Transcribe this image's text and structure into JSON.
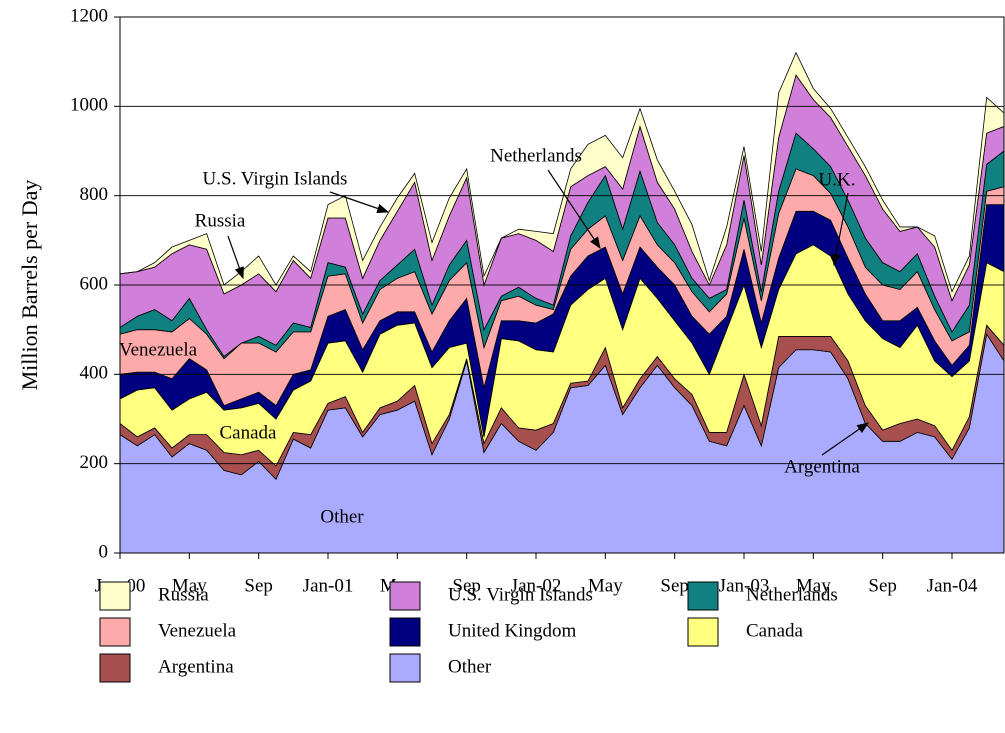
{
  "chart_data": {
    "type": "stacked_area",
    "y_label": "Million Barrels per Day",
    "categories": [
      "Jan-00",
      null,
      null,
      null,
      "May",
      null,
      null,
      null,
      "Sep",
      null,
      null,
      null,
      "Jan-01",
      null,
      null,
      null,
      "May",
      null,
      null,
      null,
      "Sep",
      null,
      null,
      null,
      "Jan-02",
      null,
      null,
      null,
      "May",
      null,
      null,
      null,
      "Sep",
      null,
      null,
      null,
      "Jan-03",
      null,
      null,
      null,
      "May",
      null,
      null,
      null,
      "Sep",
      null,
      null,
      null,
      "Jan-04",
      null,
      null,
      null
    ],
    "ylim": [
      0,
      1200
    ],
    "yticks": [
      0,
      200,
      400,
      600,
      800,
      1000,
      1200
    ],
    "grid": true,
    "series": [
      {
        "name": "Other",
        "color": "#aaaaff",
        "values": [
          265,
          240,
          265,
          215,
          245,
          230,
          185,
          175,
          205,
          165,
          255,
          235,
          320,
          325,
          260,
          310,
          320,
          340,
          220,
          300,
          430,
          225,
          290,
          250,
          230,
          270,
          370,
          375,
          420,
          310,
          370,
          420,
          370,
          330,
          250,
          240,
          330,
          240,
          415,
          455,
          455,
          450,
          390,
          290,
          250,
          250,
          270,
          260,
          210,
          280,
          490,
          430
        ]
      },
      {
        "name": "Argentina",
        "color": "#a85050",
        "values": [
          25,
          20,
          15,
          20,
          20,
          35,
          40,
          45,
          25,
          30,
          15,
          30,
          15,
          25,
          10,
          15,
          20,
          35,
          25,
          10,
          5,
          20,
          35,
          30,
          45,
          20,
          10,
          10,
          40,
          15,
          20,
          20,
          20,
          25,
          20,
          30,
          70,
          45,
          70,
          30,
          30,
          35,
          40,
          40,
          25,
          40,
          30,
          25,
          20,
          25,
          20,
          35
        ]
      },
      {
        "name": "Canada",
        "color": "#ffff80",
        "values": [
          55,
          105,
          90,
          85,
          80,
          95,
          95,
          105,
          105,
          105,
          95,
          120,
          135,
          125,
          135,
          165,
          170,
          140,
          170,
          150,
          35,
          15,
          155,
          195,
          180,
          160,
          175,
          205,
          155,
          175,
          225,
          130,
          130,
          115,
          130,
          230,
          200,
          175,
          105,
          185,
          205,
          180,
          150,
          190,
          205,
          170,
          210,
          145,
          165,
          125,
          140,
          165
        ]
      },
      {
        "name": "United Kingdom",
        "color": "#000080",
        "values": [
          55,
          40,
          35,
          70,
          90,
          50,
          10,
          20,
          25,
          30,
          35,
          25,
          60,
          70,
          50,
          30,
          30,
          25,
          35,
          60,
          100,
          110,
          40,
          45,
          60,
          85,
          65,
          75,
          70,
          80,
          70,
          70,
          80,
          60,
          90,
          30,
          80,
          55,
          70,
          95,
          75,
          80,
          80,
          60,
          40,
          60,
          40,
          45,
          25,
          35,
          130,
          150
        ]
      },
      {
        "name": "Venezuela",
        "color": "#ffaaaa",
        "values": [
          90,
          95,
          95,
          105,
          90,
          80,
          105,
          125,
          110,
          120,
          95,
          85,
          90,
          80,
          60,
          70,
          75,
          90,
          85,
          90,
          80,
          90,
          45,
          55,
          40,
          10,
          60,
          60,
          70,
          75,
          70,
          50,
          50,
          55,
          50,
          50,
          70,
          50,
          100,
          95,
          80,
          60,
          70,
          60,
          80,
          70,
          80,
          70,
          55,
          30,
          30,
          40
        ]
      },
      {
        "name": "Netherlands",
        "color": "#108080",
        "values": [
          15,
          30,
          45,
          25,
          45,
          10,
          5,
          0,
          15,
          15,
          20,
          10,
          30,
          15,
          20,
          20,
          30,
          50,
          20,
          35,
          50,
          40,
          10,
          20,
          15,
          10,
          30,
          60,
          90,
          70,
          100,
          50,
          40,
          30,
          30,
          10,
          40,
          20,
          50,
          80,
          60,
          60,
          60,
          65,
          50,
          40,
          40,
          30,
          20,
          60,
          60,
          80
        ]
      },
      {
        "name": "U.S. Virgin Islands",
        "color": "#d080d8",
        "values": [
          120,
          100,
          95,
          150,
          120,
          180,
          140,
          130,
          140,
          120,
          140,
          110,
          100,
          110,
          80,
          90,
          120,
          150,
          100,
          110,
          140,
          100,
          130,
          120,
          130,
          120,
          110,
          60,
          20,
          90,
          100,
          90,
          80,
          60,
          30,
          100,
          100,
          60,
          120,
          130,
          110,
          110,
          120,
          140,
          120,
          90,
          60,
          110,
          70,
          90,
          70,
          55
        ]
      },
      {
        "name": "Russia",
        "color": "#ffffcc",
        "values": [
          0,
          0,
          10,
          15,
          10,
          35,
          20,
          30,
          40,
          15,
          10,
          15,
          30,
          50,
          40,
          30,
          30,
          20,
          40,
          40,
          20,
          20,
          0,
          10,
          20,
          40,
          40,
          70,
          70,
          70,
          40,
          50,
          40,
          60,
          10,
          40,
          20,
          30,
          100,
          50,
          25,
          20,
          20,
          20,
          20,
          10,
          0,
          25,
          20,
          20,
          80,
          30
        ]
      }
    ],
    "annotations": [
      "Russia",
      "U.S. Virgin Islands",
      "Netherlands",
      "U.K.",
      "Venezuela",
      "Canada",
      "Argentina",
      "Other"
    ]
  }
}
